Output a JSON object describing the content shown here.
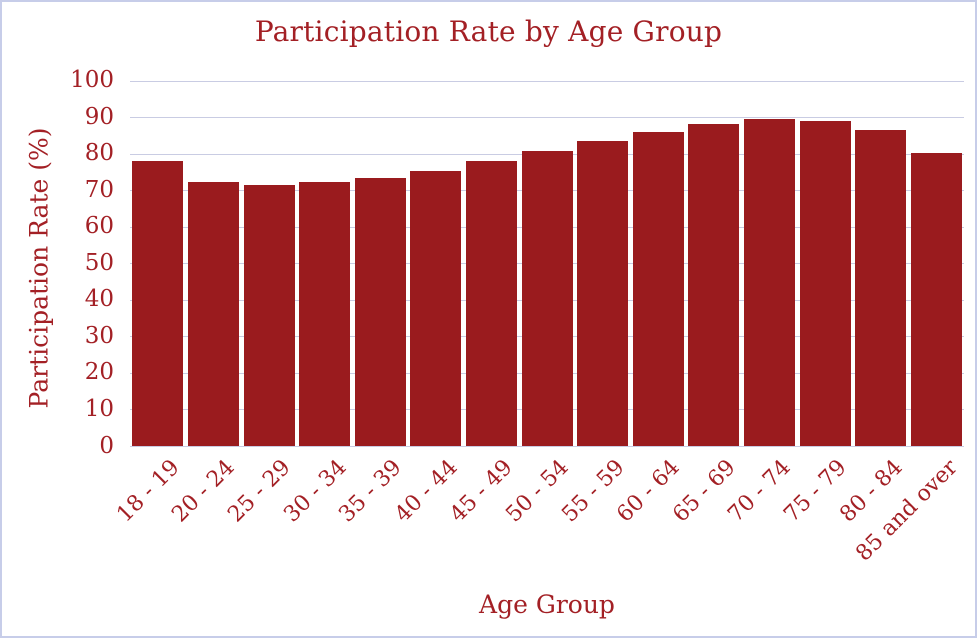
{
  "window": {
    "background": "#ffffff",
    "border_color": "#c7cde9"
  },
  "chart_data": {
    "type": "bar",
    "title": "Participation Rate by Age Group",
    "xlabel": "Age Group",
    "ylabel": "Participation Rate (%)",
    "categories": [
      "18 - 19",
      "20 - 24",
      "25 - 29",
      "30 - 34",
      "35 - 39",
      "40 - 44",
      "45 - 49",
      "50 - 54",
      "55 - 59",
      "60 - 64",
      "65 - 69",
      "70 - 74",
      "75 - 79",
      "80 - 84",
      "85 and over"
    ],
    "values": [
      78.0,
      72.4,
      71.6,
      72.4,
      73.4,
      75.3,
      78.0,
      80.8,
      83.5,
      86.0,
      88.1,
      89.6,
      89.0,
      86.6,
      80.4
    ],
    "ylim": [
      0,
      100
    ],
    "ytick_labels": [
      "0",
      "10",
      "20",
      "30",
      "40",
      "50",
      "60",
      "70",
      "80",
      "90",
      "100"
    ],
    "grid": "horizontal",
    "legend": "none",
    "bar_color": "#9a1b1e",
    "text_color": "#a32025",
    "gridline_color": "#c9cce3"
  }
}
